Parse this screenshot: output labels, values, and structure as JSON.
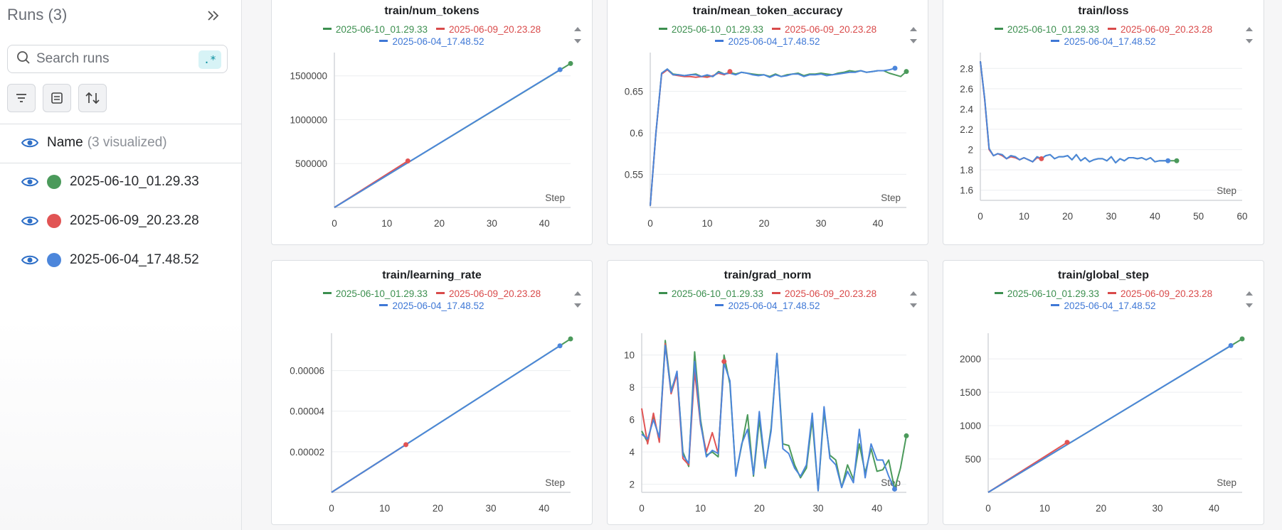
{
  "sidebar": {
    "title": "Runs (3)",
    "search_placeholder": "Search runs",
    "regex_label": ".*",
    "name_header": "Name",
    "name_sub": "(3 visualized)",
    "runs": [
      {
        "name": "2025-06-10_01.29.33",
        "color": "#4b9a5b"
      },
      {
        "name": "2025-06-09_20.23.28",
        "color": "#e15454"
      },
      {
        "name": "2025-06-04_17.48.52",
        "color": "#4c86db"
      }
    ]
  },
  "legend_colors": {
    "green": "#3c8f4f",
    "red": "#d94a4a",
    "blue": "#3f78d6"
  },
  "x_label": "Step",
  "chart_data": [
    {
      "type": "line",
      "title": "train/num_tokens",
      "xlim": [
        0,
        45
      ],
      "ylim": [
        0,
        1700000
      ],
      "xticks": [
        0,
        10,
        20,
        30,
        40
      ],
      "yticks": [
        500000,
        1000000,
        1500000
      ],
      "ytick_labels": [
        "500000",
        "1000000",
        "1500000"
      ],
      "xtick_labels": [
        "0",
        "10",
        "20",
        "30",
        "40"
      ],
      "series": [
        {
          "name": "2025-06-10_01.29.33",
          "color": "#4b9a5b",
          "x": [
            0,
            45
          ],
          "y": [
            0,
            1640000
          ]
        },
        {
          "name": "2025-06-09_20.23.28",
          "color": "#e15454",
          "x": [
            0,
            14
          ],
          "y": [
            0,
            530000
          ]
        },
        {
          "name": "2025-06-04_17.48.52",
          "color": "#4c86db",
          "x": [
            0,
            43
          ],
          "y": [
            0,
            1570000
          ]
        }
      ]
    },
    {
      "type": "line",
      "title": "train/mean_token_accuracy",
      "xlim": [
        0,
        45
      ],
      "ylim": [
        0.51,
        0.69
      ],
      "xticks": [
        0,
        10,
        20,
        30,
        40
      ],
      "yticks": [
        0.55,
        0.6,
        0.65
      ],
      "ytick_labels": [
        "0.55",
        "0.6",
        "0.65"
      ],
      "xtick_labels": [
        "0",
        "10",
        "20",
        "30",
        "40"
      ],
      "series": [
        {
          "name": "2025-06-10_01.29.33",
          "color": "#4b9a5b",
          "x": [
            0,
            1,
            2,
            3,
            4,
            5,
            6,
            7,
            8,
            9,
            10,
            11,
            12,
            13,
            14,
            15,
            16,
            17,
            18,
            19,
            20,
            21,
            22,
            23,
            24,
            25,
            26,
            27,
            28,
            29,
            30,
            31,
            32,
            33,
            34,
            35,
            36,
            37,
            38,
            39,
            40,
            41,
            42,
            43,
            44,
            45
          ],
          "y": [
            0.512,
            0.6,
            0.672,
            0.677,
            0.671,
            0.67,
            0.669,
            0.67,
            0.671,
            0.668,
            0.669,
            0.668,
            0.674,
            0.671,
            0.673,
            0.671,
            0.673,
            0.672,
            0.671,
            0.67,
            0.67,
            0.668,
            0.671,
            0.668,
            0.67,
            0.671,
            0.672,
            0.669,
            0.671,
            0.671,
            0.672,
            0.671,
            0.67,
            0.672,
            0.673,
            0.675,
            0.674,
            0.675,
            0.673,
            0.674,
            0.675,
            0.675,
            0.672,
            0.67,
            0.668,
            0.674
          ]
        },
        {
          "name": "2025-06-09_20.23.28",
          "color": "#e15454",
          "x": [
            0,
            1,
            2,
            3,
            4,
            5,
            6,
            7,
            8,
            9,
            10,
            11,
            12,
            13,
            14
          ],
          "y": [
            0.512,
            0.6,
            0.671,
            0.676,
            0.67,
            0.669,
            0.668,
            0.668,
            0.667,
            0.668,
            0.667,
            0.669,
            0.672,
            0.67,
            0.674
          ]
        },
        {
          "name": "2025-06-04_17.48.52",
          "color": "#4c86db",
          "x": [
            0,
            1,
            2,
            3,
            4,
            5,
            6,
            7,
            8,
            9,
            10,
            11,
            12,
            13,
            14,
            15,
            16,
            17,
            18,
            19,
            20,
            21,
            22,
            23,
            24,
            25,
            26,
            27,
            28,
            29,
            30,
            31,
            32,
            33,
            34,
            35,
            36,
            37,
            38,
            39,
            40,
            41,
            42,
            43
          ],
          "y": [
            0.512,
            0.6,
            0.672,
            0.677,
            0.67,
            0.67,
            0.669,
            0.67,
            0.67,
            0.668,
            0.67,
            0.668,
            0.673,
            0.671,
            0.672,
            0.67,
            0.673,
            0.672,
            0.67,
            0.669,
            0.67,
            0.667,
            0.67,
            0.668,
            0.669,
            0.671,
            0.671,
            0.668,
            0.67,
            0.67,
            0.671,
            0.669,
            0.67,
            0.671,
            0.672,
            0.673,
            0.673,
            0.675,
            0.673,
            0.674,
            0.675,
            0.675,
            0.676,
            0.678
          ]
        }
      ]
    },
    {
      "type": "line",
      "title": "train/loss",
      "xlim": [
        0,
        60
      ],
      "ylim": [
        1.5,
        2.9
      ],
      "xticks": [
        0,
        10,
        20,
        30,
        40,
        50,
        60
      ],
      "yticks": [
        1.6,
        1.8,
        2,
        2.2,
        2.4,
        2.6,
        2.8
      ],
      "ytick_labels": [
        "1.6",
        "1.8",
        "2",
        "2.2",
        "2.4",
        "2.6",
        "2.8"
      ],
      "xtick_labels": [
        "0",
        "10",
        "20",
        "30",
        "40",
        "50",
        "60"
      ],
      "series": [
        {
          "name": "2025-06-10_01.29.33",
          "color": "#4b9a5b",
          "x": [
            0,
            1,
            2,
            3,
            4,
            5,
            6,
            7,
            8,
            9,
            10,
            11,
            12,
            13,
            14,
            15,
            16,
            17,
            18,
            19,
            20,
            21,
            22,
            23,
            24,
            25,
            26,
            27,
            28,
            29,
            30,
            31,
            32,
            33,
            34,
            35,
            36,
            37,
            38,
            39,
            40,
            41,
            42,
            43,
            44,
            45
          ],
          "y": [
            2.87,
            2.5,
            2.01,
            1.94,
            1.96,
            1.95,
            1.91,
            1.94,
            1.93,
            1.9,
            1.92,
            1.9,
            1.88,
            1.93,
            1.91,
            1.94,
            1.95,
            1.91,
            1.93,
            1.93,
            1.94,
            1.9,
            1.95,
            1.89,
            1.92,
            1.88,
            1.9,
            1.91,
            1.91,
            1.89,
            1.93,
            1.87,
            1.91,
            1.89,
            1.92,
            1.92,
            1.91,
            1.92,
            1.9,
            1.92,
            1.88,
            1.89,
            1.89,
            1.89,
            1.89,
            1.89
          ]
        },
        {
          "name": "2025-06-09_20.23.28",
          "color": "#e15454",
          "x": [
            0,
            1,
            2,
            3,
            4,
            5,
            6,
            7,
            8,
            9,
            10,
            11,
            12,
            13,
            14
          ],
          "y": [
            2.87,
            2.49,
            2.0,
            1.94,
            1.96,
            1.94,
            1.91,
            1.93,
            1.92,
            1.9,
            1.92,
            1.9,
            1.88,
            1.92,
            1.91
          ]
        },
        {
          "name": "2025-06-04_17.48.52",
          "color": "#4c86db",
          "x": [
            0,
            1,
            2,
            3,
            4,
            5,
            6,
            7,
            8,
            9,
            10,
            11,
            12,
            13,
            14,
            15,
            16,
            17,
            18,
            19,
            20,
            21,
            22,
            23,
            24,
            25,
            26,
            27,
            28,
            29,
            30,
            31,
            32,
            33,
            34,
            35,
            36,
            37,
            38,
            39,
            40,
            41,
            42,
            43
          ],
          "y": [
            2.87,
            2.5,
            2.01,
            1.94,
            1.96,
            1.95,
            1.91,
            1.94,
            1.93,
            1.9,
            1.92,
            1.9,
            1.88,
            1.93,
            1.91,
            1.94,
            1.95,
            1.91,
            1.93,
            1.93,
            1.94,
            1.9,
            1.95,
            1.89,
            1.92,
            1.88,
            1.9,
            1.91,
            1.91,
            1.89,
            1.93,
            1.87,
            1.91,
            1.89,
            1.92,
            1.92,
            1.91,
            1.92,
            1.9,
            1.92,
            1.88,
            1.89,
            1.89,
            1.89
          ]
        }
      ]
    },
    {
      "type": "line",
      "title": "train/learning_rate",
      "xlim": [
        0,
        45
      ],
      "ylim": [
        0,
        7.56e-05
      ],
      "xticks": [
        0,
        10,
        20,
        30,
        40
      ],
      "yticks": [
        2e-05,
        4e-05,
        6e-05
      ],
      "ytick_labels": [
        "0.00002",
        "0.00004",
        "0.00006"
      ],
      "xtick_labels": [
        "0",
        "10",
        "20",
        "30",
        "40"
      ],
      "series": [
        {
          "name": "2025-06-10_01.29.33",
          "color": "#4b9a5b",
          "x": [
            0,
            45
          ],
          "y": [
            0,
            7.56e-05
          ]
        },
        {
          "name": "2025-06-09_20.23.28",
          "color": "#e15454",
          "x": [
            0,
            14
          ],
          "y": [
            0,
            2.35e-05
          ]
        },
        {
          "name": "2025-06-04_17.48.52",
          "color": "#4c86db",
          "x": [
            0,
            43
          ],
          "y": [
            0,
            7.22e-05
          ]
        }
      ]
    },
    {
      "type": "line",
      "title": "train/grad_norm",
      "xlim": [
        0,
        45
      ],
      "ylim": [
        1.5,
        11
      ],
      "xticks": [
        0,
        10,
        20,
        30,
        40
      ],
      "yticks": [
        2,
        4,
        6,
        8,
        10
      ],
      "ytick_labels": [
        "2",
        "4",
        "6",
        "8",
        "10"
      ],
      "xtick_labels": [
        "0",
        "10",
        "20",
        "30",
        "40"
      ],
      "series": [
        {
          "name": "2025-06-10_01.29.33",
          "color": "#4b9a5b",
          "x": [
            0,
            1,
            2,
            3,
            4,
            5,
            6,
            7,
            8,
            9,
            10,
            11,
            12,
            13,
            14,
            15,
            16,
            17,
            18,
            19,
            20,
            21,
            22,
            23,
            24,
            25,
            26,
            27,
            28,
            29,
            30,
            31,
            32,
            33,
            34,
            35,
            36,
            37,
            38,
            39,
            40,
            41,
            42,
            43,
            44,
            45
          ],
          "y": [
            5.3,
            4.6,
            6.2,
            4.8,
            10.9,
            7.8,
            8.9,
            4.0,
            3.1,
            10.2,
            6.0,
            3.8,
            4.0,
            3.7,
            10.0,
            8.2,
            2.6,
            4.4,
            6.3,
            2.5,
            6.0,
            3.0,
            5.5,
            10.1,
            4.5,
            4.4,
            3.2,
            2.4,
            3.0,
            6.0,
            1.6,
            6.5,
            3.8,
            3.5,
            1.8,
            3.2,
            2.3,
            4.5,
            2.7,
            4.2,
            2.8,
            2.9,
            3.5,
            1.7,
            3.0,
            5.0
          ]
        },
        {
          "name": "2025-06-09_20.23.28",
          "color": "#e15454",
          "x": [
            0,
            1,
            2,
            3,
            4,
            5,
            6,
            7,
            8,
            9,
            10,
            11,
            12,
            13,
            14
          ],
          "y": [
            6.7,
            4.5,
            6.4,
            4.6,
            10.7,
            7.6,
            8.8,
            3.6,
            3.2,
            9.0,
            5.7,
            4.0,
            5.2,
            3.9,
            9.6
          ]
        },
        {
          "name": "2025-06-04_17.48.52",
          "color": "#4c86db",
          "x": [
            0,
            1,
            2,
            3,
            4,
            5,
            6,
            7,
            8,
            9,
            10,
            11,
            12,
            13,
            14,
            15,
            16,
            17,
            18,
            19,
            20,
            21,
            22,
            23,
            24,
            25,
            26,
            27,
            28,
            29,
            30,
            31,
            32,
            33,
            34,
            35,
            36,
            37,
            38,
            39,
            40,
            41,
            42,
            43
          ],
          "y": [
            5.1,
            4.8,
            6.0,
            4.9,
            10.6,
            7.7,
            9.0,
            3.8,
            3.3,
            9.6,
            5.8,
            3.7,
            4.1,
            3.9,
            9.5,
            8.4,
            2.5,
            4.5,
            5.4,
            2.6,
            6.5,
            3.1,
            5.3,
            10.1,
            4.2,
            3.9,
            3.0,
            2.5,
            3.2,
            6.4,
            1.6,
            6.8,
            3.6,
            3.2,
            1.8,
            2.8,
            2.1,
            5.4,
            2.4,
            4.5,
            3.5,
            3.5,
            2.5,
            1.7
          ]
        }
      ]
    },
    {
      "type": "line",
      "title": "train/global_step",
      "xlim": [
        0,
        45
      ],
      "ylim": [
        0,
        2300
      ],
      "xticks": [
        0,
        10,
        20,
        30,
        40
      ],
      "yticks": [
        500,
        1000,
        1500,
        2000
      ],
      "ytick_labels": [
        "500",
        "1000",
        "1500",
        "2000"
      ],
      "xtick_labels": [
        "0",
        "10",
        "20",
        "30",
        "40"
      ],
      "series": [
        {
          "name": "2025-06-10_01.29.33",
          "color": "#4b9a5b",
          "x": [
            0,
            45
          ],
          "y": [
            0,
            2300
          ]
        },
        {
          "name": "2025-06-09_20.23.28",
          "color": "#e15454",
          "x": [
            0,
            14
          ],
          "y": [
            0,
            750
          ]
        },
        {
          "name": "2025-06-04_17.48.52",
          "color": "#4c86db",
          "x": [
            0,
            43
          ],
          "y": [
            0,
            2200
          ]
        }
      ]
    }
  ]
}
